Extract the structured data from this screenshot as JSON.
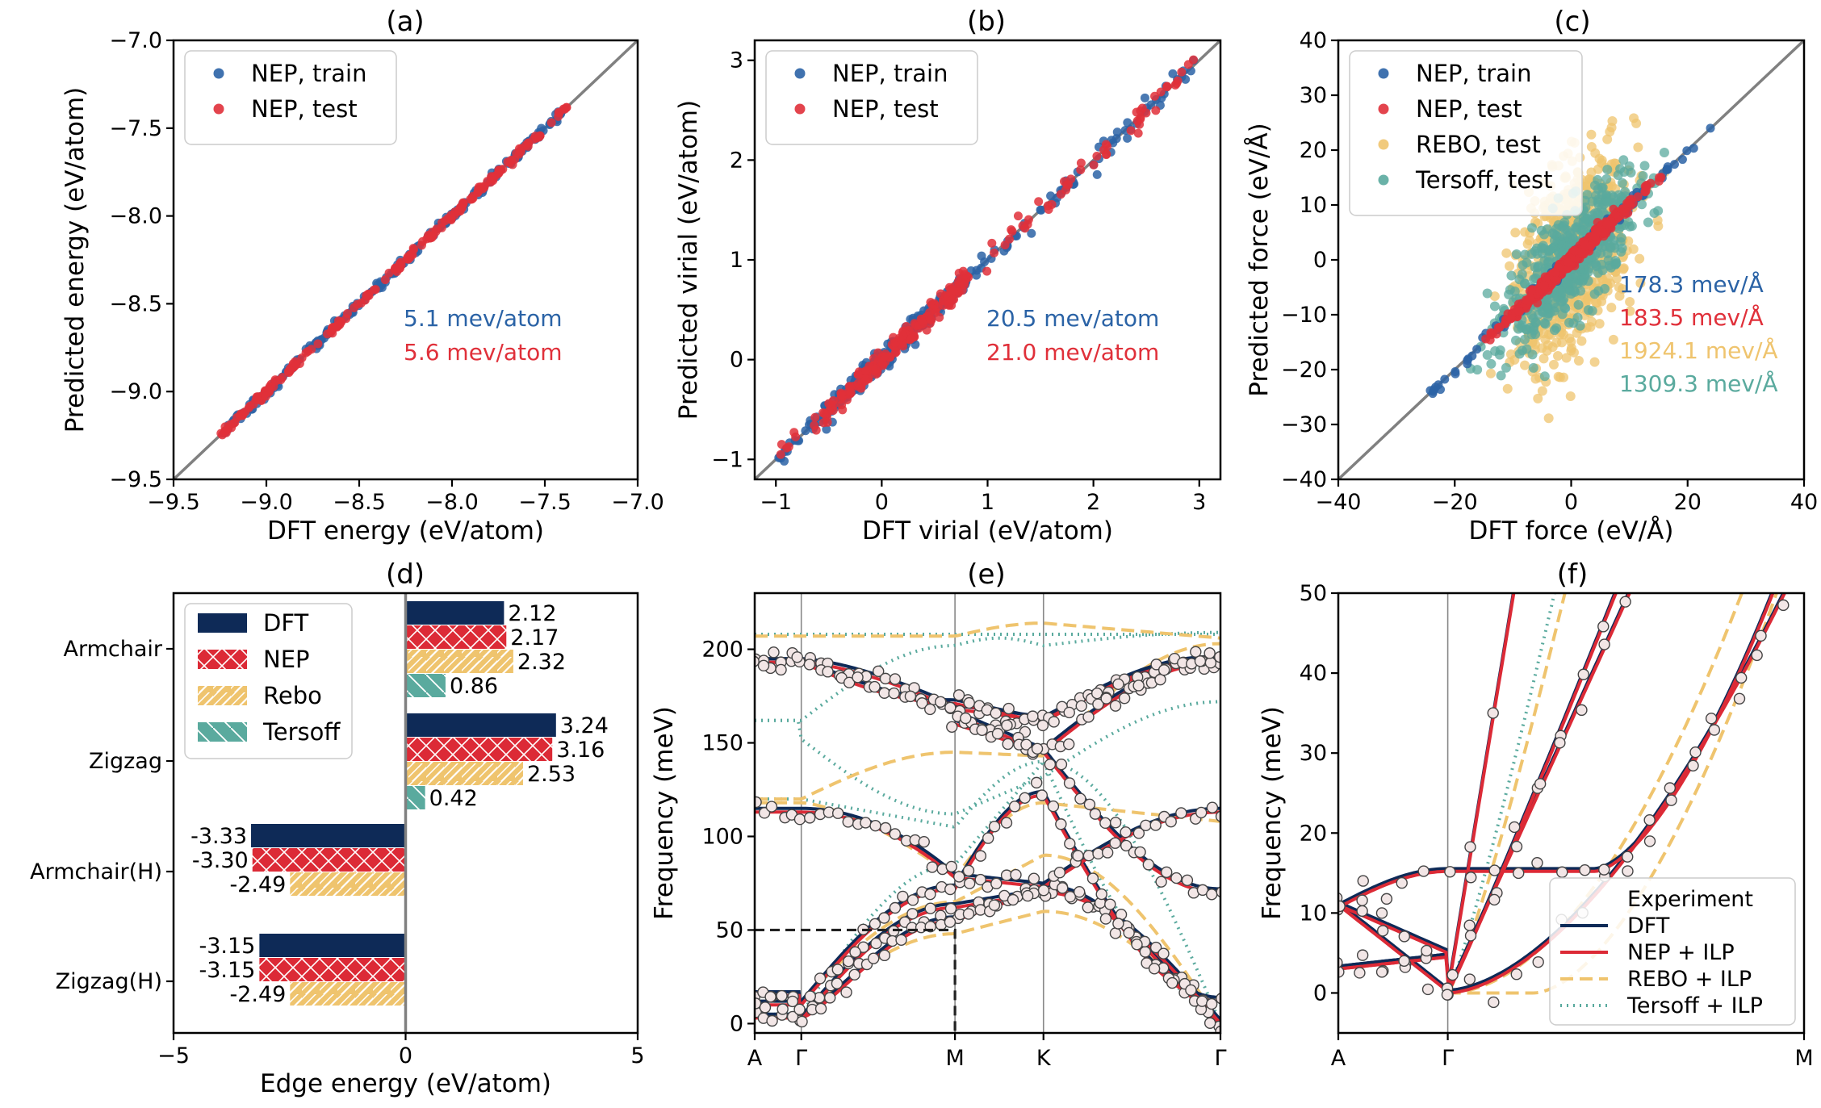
{
  "colors": {
    "train": "#2b63a6",
    "test": "#e0303a",
    "rebo": "#efc46e",
    "tersoff": "#5aaa9e",
    "dft_dark": "#0e2a57",
    "nep_red": "#dc2a36",
    "diag": "#808080",
    "marker_edge": "#444444",
    "marker_face": "#f2e6e6"
  },
  "chart_data": [
    {
      "panel": "(a)",
      "type": "scatter",
      "xlabel": "DFT energy (eV/atom)",
      "ylabel": "Predicted energy (eV/atom)",
      "xlim": [
        -9.5,
        -7.0
      ],
      "ylim": [
        -9.5,
        -7.0
      ],
      "xticks": [
        "-9.5",
        "-9.0",
        "-8.5",
        "-8.0",
        "-7.5",
        "-7.0"
      ],
      "yticks": [
        "-9.5",
        "-9.0",
        "-8.5",
        "-8.0",
        "-7.5",
        "-7.0"
      ],
      "legend": [
        "NEP, train",
        "NEP, test"
      ],
      "annotations": [
        "5.1 mev/atom",
        "5.6 mev/atom"
      ],
      "series": [
        {
          "name": "NEP, train",
          "range": [
            -9.25,
            -7.4
          ],
          "spread": 0.012
        },
        {
          "name": "NEP, test",
          "range": [
            -9.25,
            -7.38
          ],
          "spread": 0.012
        }
      ]
    },
    {
      "panel": "(b)",
      "type": "scatter",
      "xlabel": "DFT virial (eV/atom)",
      "ylabel": "Predicted virial (eV/atom)",
      "xlim": [
        -1.2,
        3.2
      ],
      "ylim": [
        -1.2,
        3.2
      ],
      "xticks": [
        "-1",
        "0",
        "1",
        "2",
        "3"
      ],
      "yticks": [
        "-1",
        "0",
        "1",
        "2",
        "3"
      ],
      "legend": [
        "NEP, train",
        "NEP, test"
      ],
      "annotations": [
        "20.5 mev/atom",
        "21.0 mev/atom"
      ],
      "series": [
        {
          "name": "NEP, train",
          "range": [
            -1.0,
            2.95
          ],
          "spread": 0.05
        },
        {
          "name": "NEP, test",
          "range": [
            -1.05,
            2.95
          ],
          "spread": 0.05
        }
      ]
    },
    {
      "panel": "(c)",
      "type": "scatter",
      "xlabel": "DFT force (eV/Å)",
      "ylabel": "Predicted force (eV/Å)",
      "xlim": [
        -40,
        40
      ],
      "ylim": [
        -40,
        40
      ],
      "xticks": [
        "-40",
        "-20",
        "0",
        "20",
        "40"
      ],
      "yticks": [
        "-40",
        "-30",
        "-20",
        "-10",
        "0",
        "10",
        "20",
        "30",
        "40"
      ],
      "legend": [
        "NEP, train",
        "NEP, test",
        "REBO, test",
        "Tersoff, test"
      ],
      "annotations": [
        "178.3 mev/Å",
        "183.5 mev/Å",
        "1924.1 mev/Å",
        "1309.3 mev/Å"
      ]
    },
    {
      "panel": "(d)",
      "type": "bar",
      "orientation": "horizontal",
      "xlabel": "Edge energy (eV/atom)",
      "xlim": [
        -5,
        5
      ],
      "xticks": [
        "-5",
        "0",
        "5"
      ],
      "categories": [
        "Armchair",
        "Zigzag",
        "Armchair(H)",
        "Zigzag(H)"
      ],
      "series": [
        {
          "name": "DFT",
          "values": [
            2.12,
            3.24,
            -3.33,
            -3.15
          ],
          "labels": [
            "2.12",
            "3.24",
            "-3.33",
            "-3.15"
          ]
        },
        {
          "name": "NEP",
          "values": [
            2.17,
            3.16,
            -3.3,
            -3.15
          ],
          "labels": [
            "2.17",
            "3.16",
            "-3.30",
            "-3.15"
          ]
        },
        {
          "name": "Rebo",
          "values": [
            2.32,
            2.53,
            -2.49,
            -2.49
          ],
          "labels": [
            "2.32",
            "2.53",
            "-2.49",
            "-2.49"
          ]
        },
        {
          "name": "Tersoff",
          "values": [
            0.86,
            0.42,
            null,
            null
          ],
          "labels": [
            "0.86",
            "0.42",
            "",
            ""
          ]
        }
      ]
    },
    {
      "panel": "(e)",
      "type": "line",
      "ylabel": "Frequency (meV)",
      "ylim": [
        -5,
        230
      ],
      "yticks": [
        "0",
        "50",
        "100",
        "150",
        "200"
      ],
      "xticks": [
        "A",
        "Γ",
        "M",
        "K",
        "Γ"
      ],
      "kpath": [
        0,
        0.1,
        0.43,
        0.62,
        1.0
      ],
      "series_names": [
        "DFT",
        "NEP + ILP",
        "REBO + ILP",
        "Tersoff + ILP",
        "Experiment"
      ]
    },
    {
      "panel": "(f)",
      "type": "line",
      "ylabel": "Frequency (meV)",
      "ylim": [
        -5,
        50
      ],
      "yticks": [
        "0",
        "10",
        "20",
        "30",
        "40",
        "50"
      ],
      "xticks": [
        "A",
        "Γ",
        "M"
      ],
      "legend": [
        "Experiment",
        "DFT",
        "NEP + ILP",
        "REBO + ILP",
        "Tersoff + ILP"
      ]
    }
  ]
}
